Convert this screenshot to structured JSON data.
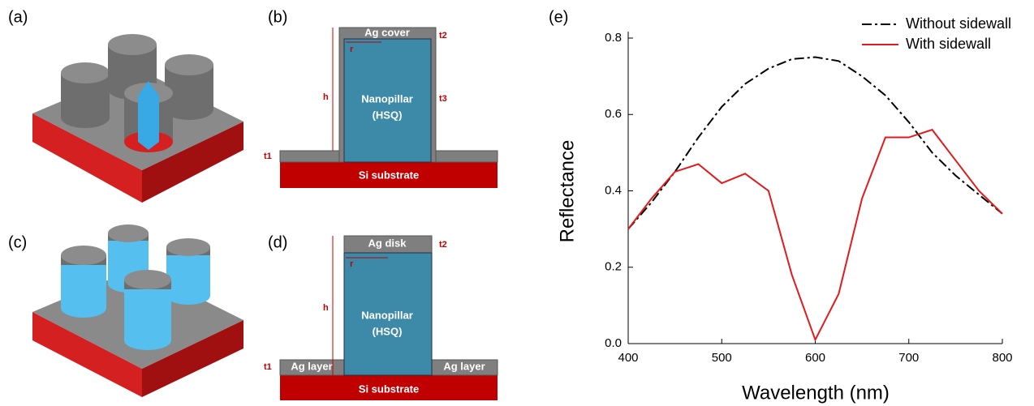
{
  "panels": {
    "a": {
      "label": "(a)"
    },
    "b": {
      "label": "(b)",
      "cover": "Ag cover",
      "t2": "t2",
      "r": "r",
      "h": "h",
      "pillar": "Nanopillar",
      "material": "(HSQ)",
      "t3": "t3",
      "t1": "t1",
      "substrate": "Si substrate"
    },
    "c": {
      "label": "(c)"
    },
    "d": {
      "label": "(d)",
      "disk": "Ag disk",
      "t2": "t2",
      "r": "r",
      "h": "h",
      "pillar": "Nanopillar",
      "material": "(HSQ)",
      "t1": "t1",
      "layer_left": "Ag layer",
      "layer_right": "Ag layer",
      "substrate": "Si substrate"
    },
    "e": {
      "label": "(e)"
    }
  },
  "chart_data": {
    "type": "line",
    "x_label": "Wavelength (nm)",
    "y_label": "Reflectance",
    "x": [
      400,
      425,
      450,
      475,
      500,
      525,
      550,
      575,
      600,
      625,
      650,
      675,
      700,
      725,
      750,
      775,
      800
    ],
    "series": [
      {
        "name": "Without sidewall",
        "color": "#000000",
        "dash": "dashdot",
        "values": [
          0.3,
          0.37,
          0.45,
          0.54,
          0.62,
          0.68,
          0.72,
          0.745,
          0.75,
          0.74,
          0.7,
          0.65,
          0.58,
          0.5,
          0.44,
          0.39,
          0.34
        ]
      },
      {
        "name": "With sidewall",
        "color": "#e31a1c",
        "dash": "solid",
        "values": [
          0.3,
          0.38,
          0.45,
          0.47,
          0.42,
          0.445,
          0.4,
          0.18,
          0.01,
          0.13,
          0.38,
          0.54,
          0.54,
          0.56,
          0.48,
          0.4,
          0.34
        ]
      }
    ],
    "xlim": [
      400,
      800
    ],
    "xticks": [
      400,
      500,
      600,
      700,
      800
    ],
    "ylim": [
      0,
      0.8
    ],
    "yticks": [
      {
        "value": 0,
        "label": "0.0"
      },
      0.2,
      0.4,
      0.6,
      0.8
    ],
    "legend": "upper right",
    "grid": false
  }
}
